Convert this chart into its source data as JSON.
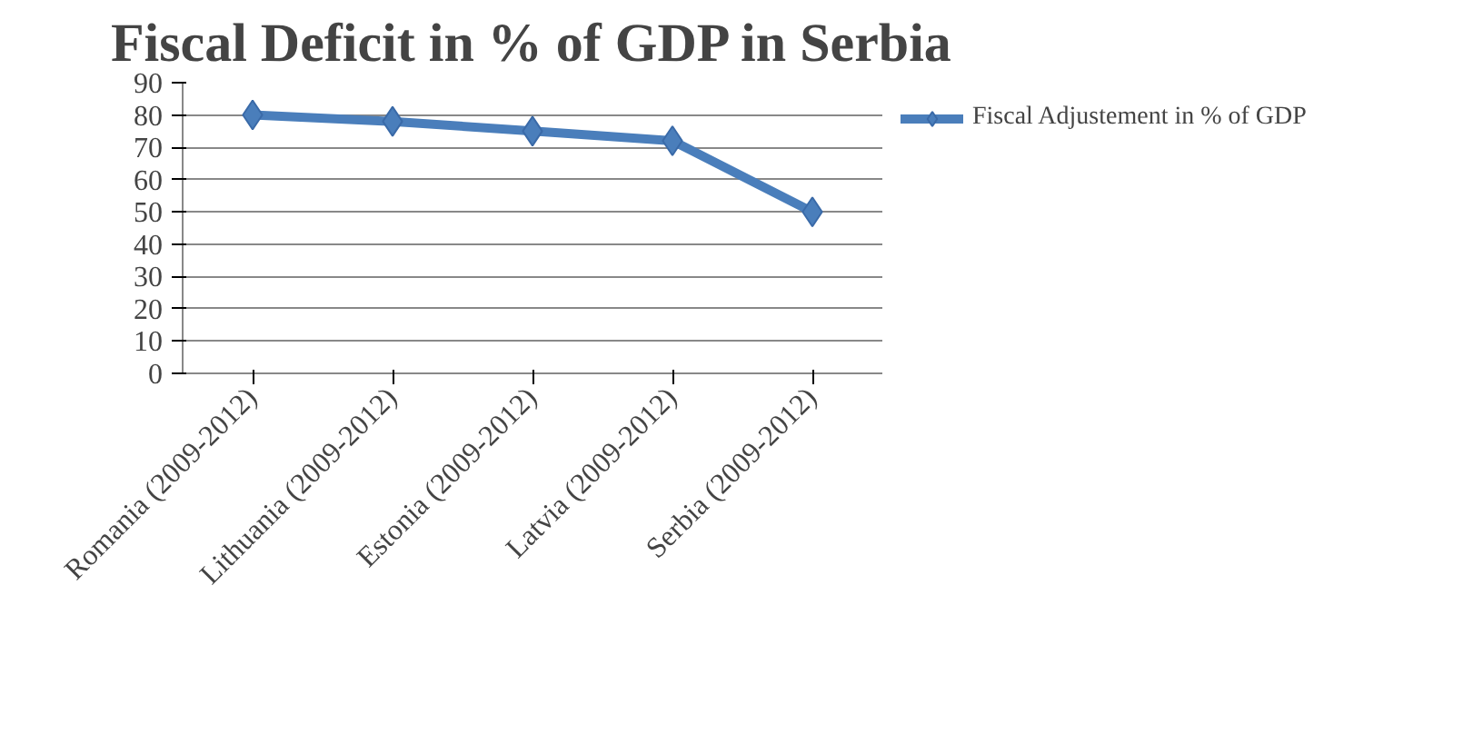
{
  "chart_data": {
    "type": "line",
    "title": "Fiscal Deficit in % of GDP in Serbia",
    "categories": [
      "Romania (2009-2012)",
      "Lithuania (2009-2012)",
      "Estonia (2009-2012)",
      "Latvia (2009-2012)",
      "Serbia (2009-2012)"
    ],
    "series": [
      {
        "name": "Fiscal Adjustement in % of GDP",
        "color": "#4a7ebb",
        "values": [
          80,
          78,
          75,
          72,
          50
        ]
      }
    ],
    "ylim": [
      0,
      90
    ],
    "yticks": [
      0,
      10,
      20,
      30,
      40,
      50,
      60,
      70,
      80,
      90
    ],
    "grid": "y",
    "legend": "right",
    "marker": "diamond",
    "line_style": "solid"
  }
}
